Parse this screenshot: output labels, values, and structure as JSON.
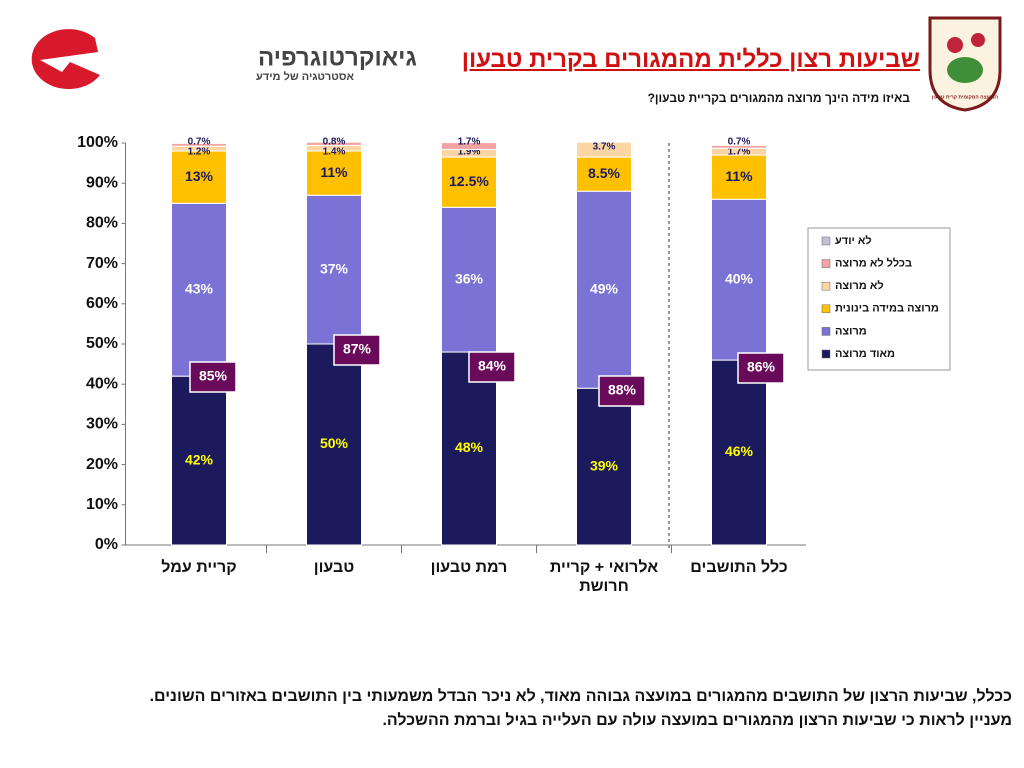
{
  "header": {
    "logo_name": "גיאוקרטוגרפיה",
    "logo_tagline": "אסטרטגיה של מידע",
    "title": "שביעות רצון כללית מהמגורים בקרית טבעון",
    "emblem_text": "המועצה המקומית קרית טבעון"
  },
  "chart_data": {
    "type": "stacked-bar",
    "subtitle": "באיזו מידה הינך מרוצה מהמגורים בקריית טבעון?",
    "categories": [
      "קריית עמל",
      "טבעון",
      "רמת טבעון",
      "אלרואי + קריית חרושת",
      "כלל התושבים"
    ],
    "series": [
      {
        "name": "מאוד מרוצה",
        "color": "#1b1a5c",
        "values": [
          42,
          50,
          48,
          39,
          46
        ],
        "value_labels": [
          "42%",
          "50%",
          "48%",
          "39%",
          "46%"
        ]
      },
      {
        "name": "מרוצה",
        "color": "#7a72d4",
        "values": [
          43,
          37,
          36,
          49,
          40
        ],
        "value_labels": [
          "43%",
          "37%",
          "36%",
          "49%",
          "40%"
        ]
      },
      {
        "name": "מרוצה במידה בינונית",
        "color": "#ffc000",
        "values": [
          13,
          11,
          12.5,
          8.5,
          11
        ],
        "value_labels": [
          "13%",
          "11%",
          "12.5%",
          "8.5%",
          "11%"
        ]
      },
      {
        "name": "לא מרוצה",
        "color": "#fcd5a5",
        "values": [
          1.2,
          1.4,
          1.9,
          3.7,
          1.7
        ],
        "value_labels": [
          "1.2%",
          "1.4%",
          "1.9%",
          "3.7%",
          "1.7%"
        ]
      },
      {
        "name": "בכלל לא מרוצה",
        "color": "#f4a3a3",
        "values": [
          0.7,
          0.8,
          1.7,
          null,
          0.7
        ],
        "value_labels": [
          "0.7%",
          "0.8%",
          "1.7%",
          null,
          "0.7%"
        ]
      },
      {
        "name": "לא יודע",
        "color": "#c0bfd8",
        "values": [
          null,
          null,
          null,
          null,
          null
        ],
        "value_labels": [
          null,
          null,
          null,
          null,
          null
        ]
      }
    ],
    "satisfied_totals": {
      "values": [
        85,
        87,
        84,
        88,
        86
      ],
      "value_labels": [
        "85%",
        "87%",
        "84%",
        "88%",
        "86%"
      ]
    },
    "ylim": [
      0,
      100
    ],
    "yticks": [
      {
        "value": 0,
        "label": "0%"
      },
      {
        "value": 10,
        "label": "10%"
      },
      {
        "value": 20,
        "label": "20%"
      },
      {
        "value": 30,
        "label": "30%"
      },
      {
        "value": 40,
        "label": "40%"
      },
      {
        "value": 50,
        "label": "50%"
      },
      {
        "value": 60,
        "label": "60%"
      },
      {
        "value": 70,
        "label": "70%"
      },
      {
        "value": 80,
        "label": "80%"
      },
      {
        "value": 90,
        "label": "90%"
      },
      {
        "value": 100,
        "label": "100%"
      }
    ],
    "legend": "right"
  },
  "footer": {
    "lines": [
      "ככלל, שביעות הרצון של התושבים מהמגורים במועצה גבוהה מאוד, לא ניכר הבדל משמעותי בין התושבים באזורים השונים.",
      "מעניין לראות כי שביעות הרצון מהמגורים במועצה עולה עם העלייה בגיל וברמת ההשכלה."
    ]
  }
}
